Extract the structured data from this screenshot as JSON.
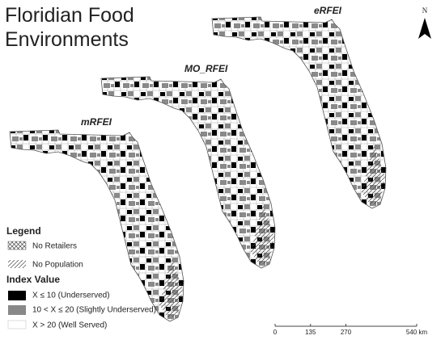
{
  "title": "Floridian Food Environments",
  "maps": [
    {
      "label": "eRFEI"
    },
    {
      "label": "MO_RFEI"
    },
    {
      "label": "mRFEI"
    }
  ],
  "north_arrow": "N",
  "legend": {
    "title": "Legend",
    "items": [
      {
        "label": "No Retailers"
      },
      {
        "label": "No Population"
      }
    ],
    "index_title": "Index Value",
    "index_items": [
      {
        "label": "X ≤ 10 (Underserved)"
      },
      {
        "label": "10 < X ≤ 20 (Slightly Underserved)"
      },
      {
        "label": "X > 20 (Well Served)"
      }
    ]
  },
  "scale_bar": {
    "range": [
      0,
      540
    ],
    "ticks": [
      0,
      135,
      270,
      {
        "value": 540,
        "label": "540 km"
      }
    ]
  }
}
